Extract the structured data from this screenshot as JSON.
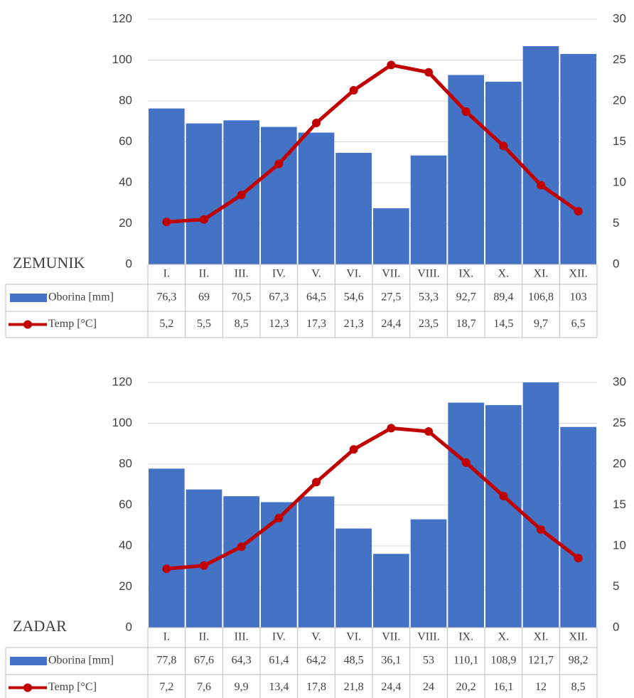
{
  "chart_data": [
    {
      "type": "bar",
      "title": "ZEMUNIK",
      "categories": [
        "I.",
        "II.",
        "III.",
        "IV.",
        "V.",
        "VI.",
        "VII.",
        "VIII.",
        "IX.",
        "X.",
        "XI.",
        "XII."
      ],
      "series": [
        {
          "name": "Oborina [mm]",
          "color": "#4472c4",
          "values": [
            76.3,
            69,
            70.5,
            67.3,
            64.5,
            54.6,
            27.5,
            53.3,
            92.7,
            89.4,
            106.8,
            103
          ],
          "value_labels": [
            "76,3",
            "69",
            "70,5",
            "67,3",
            "64,5",
            "54,6",
            "27,5",
            "53,3",
            "92,7",
            "89,4",
            "106,8",
            "103"
          ]
        },
        {
          "name": "Temp [°C]",
          "color": "#c00000",
          "axis": "y2",
          "values": [
            5.2,
            5.5,
            8.5,
            12.3,
            17.3,
            21.3,
            24.4,
            23.5,
            18.7,
            14.5,
            9.7,
            6.5
          ],
          "value_labels": [
            "5,2",
            "5,5",
            "8,5",
            "12,3",
            "17,3",
            "21,3",
            "24,4",
            "23,5",
            "18,7",
            "14,5",
            "9,7",
            "6,5"
          ]
        }
      ],
      "ylim": [
        0,
        120
      ],
      "yticks": [
        0,
        20,
        40,
        60,
        80,
        100,
        120
      ],
      "y2lim": [
        0,
        30
      ],
      "y2ticks": [
        0,
        5,
        10,
        15,
        20,
        25,
        30
      ],
      "grid": true
    },
    {
      "type": "bar",
      "title": "ZADAR",
      "categories": [
        "I.",
        "II.",
        "III.",
        "IV.",
        "V.",
        "VI.",
        "VII.",
        "VIII.",
        "IX.",
        "X.",
        "XI.",
        "XII."
      ],
      "series": [
        {
          "name": "Oborina [mm]",
          "color": "#4472c4",
          "values": [
            77.8,
            67.6,
            64.3,
            61.4,
            64.2,
            48.5,
            36.1,
            53,
            110.1,
            108.9,
            121.7,
            98.2
          ],
          "value_labels": [
            "77,8",
            "67,6",
            "64,3",
            "61,4",
            "64,2",
            "48,5",
            "36,1",
            "53",
            "110,1",
            "108,9",
            "121,7",
            "98,2"
          ]
        },
        {
          "name": "Temp [°C]",
          "color": "#c00000",
          "axis": "y2",
          "values": [
            7.2,
            7.6,
            9.9,
            13.4,
            17.8,
            21.8,
            24.4,
            24,
            20.2,
            16.1,
            12,
            8.5
          ],
          "value_labels": [
            "7,2",
            "7,6",
            "9,9",
            "13,4",
            "17,8",
            "21,8",
            "24,4",
            "24",
            "20,2",
            "16,1",
            "12",
            "8,5"
          ]
        }
      ],
      "ylim": [
        0,
        120
      ],
      "yticks": [
        0,
        20,
        40,
        60,
        80,
        100,
        120
      ],
      "y2lim": [
        0,
        30
      ],
      "y2ticks": [
        0,
        5,
        10,
        15,
        20,
        25,
        30
      ],
      "grid": true
    }
  ]
}
